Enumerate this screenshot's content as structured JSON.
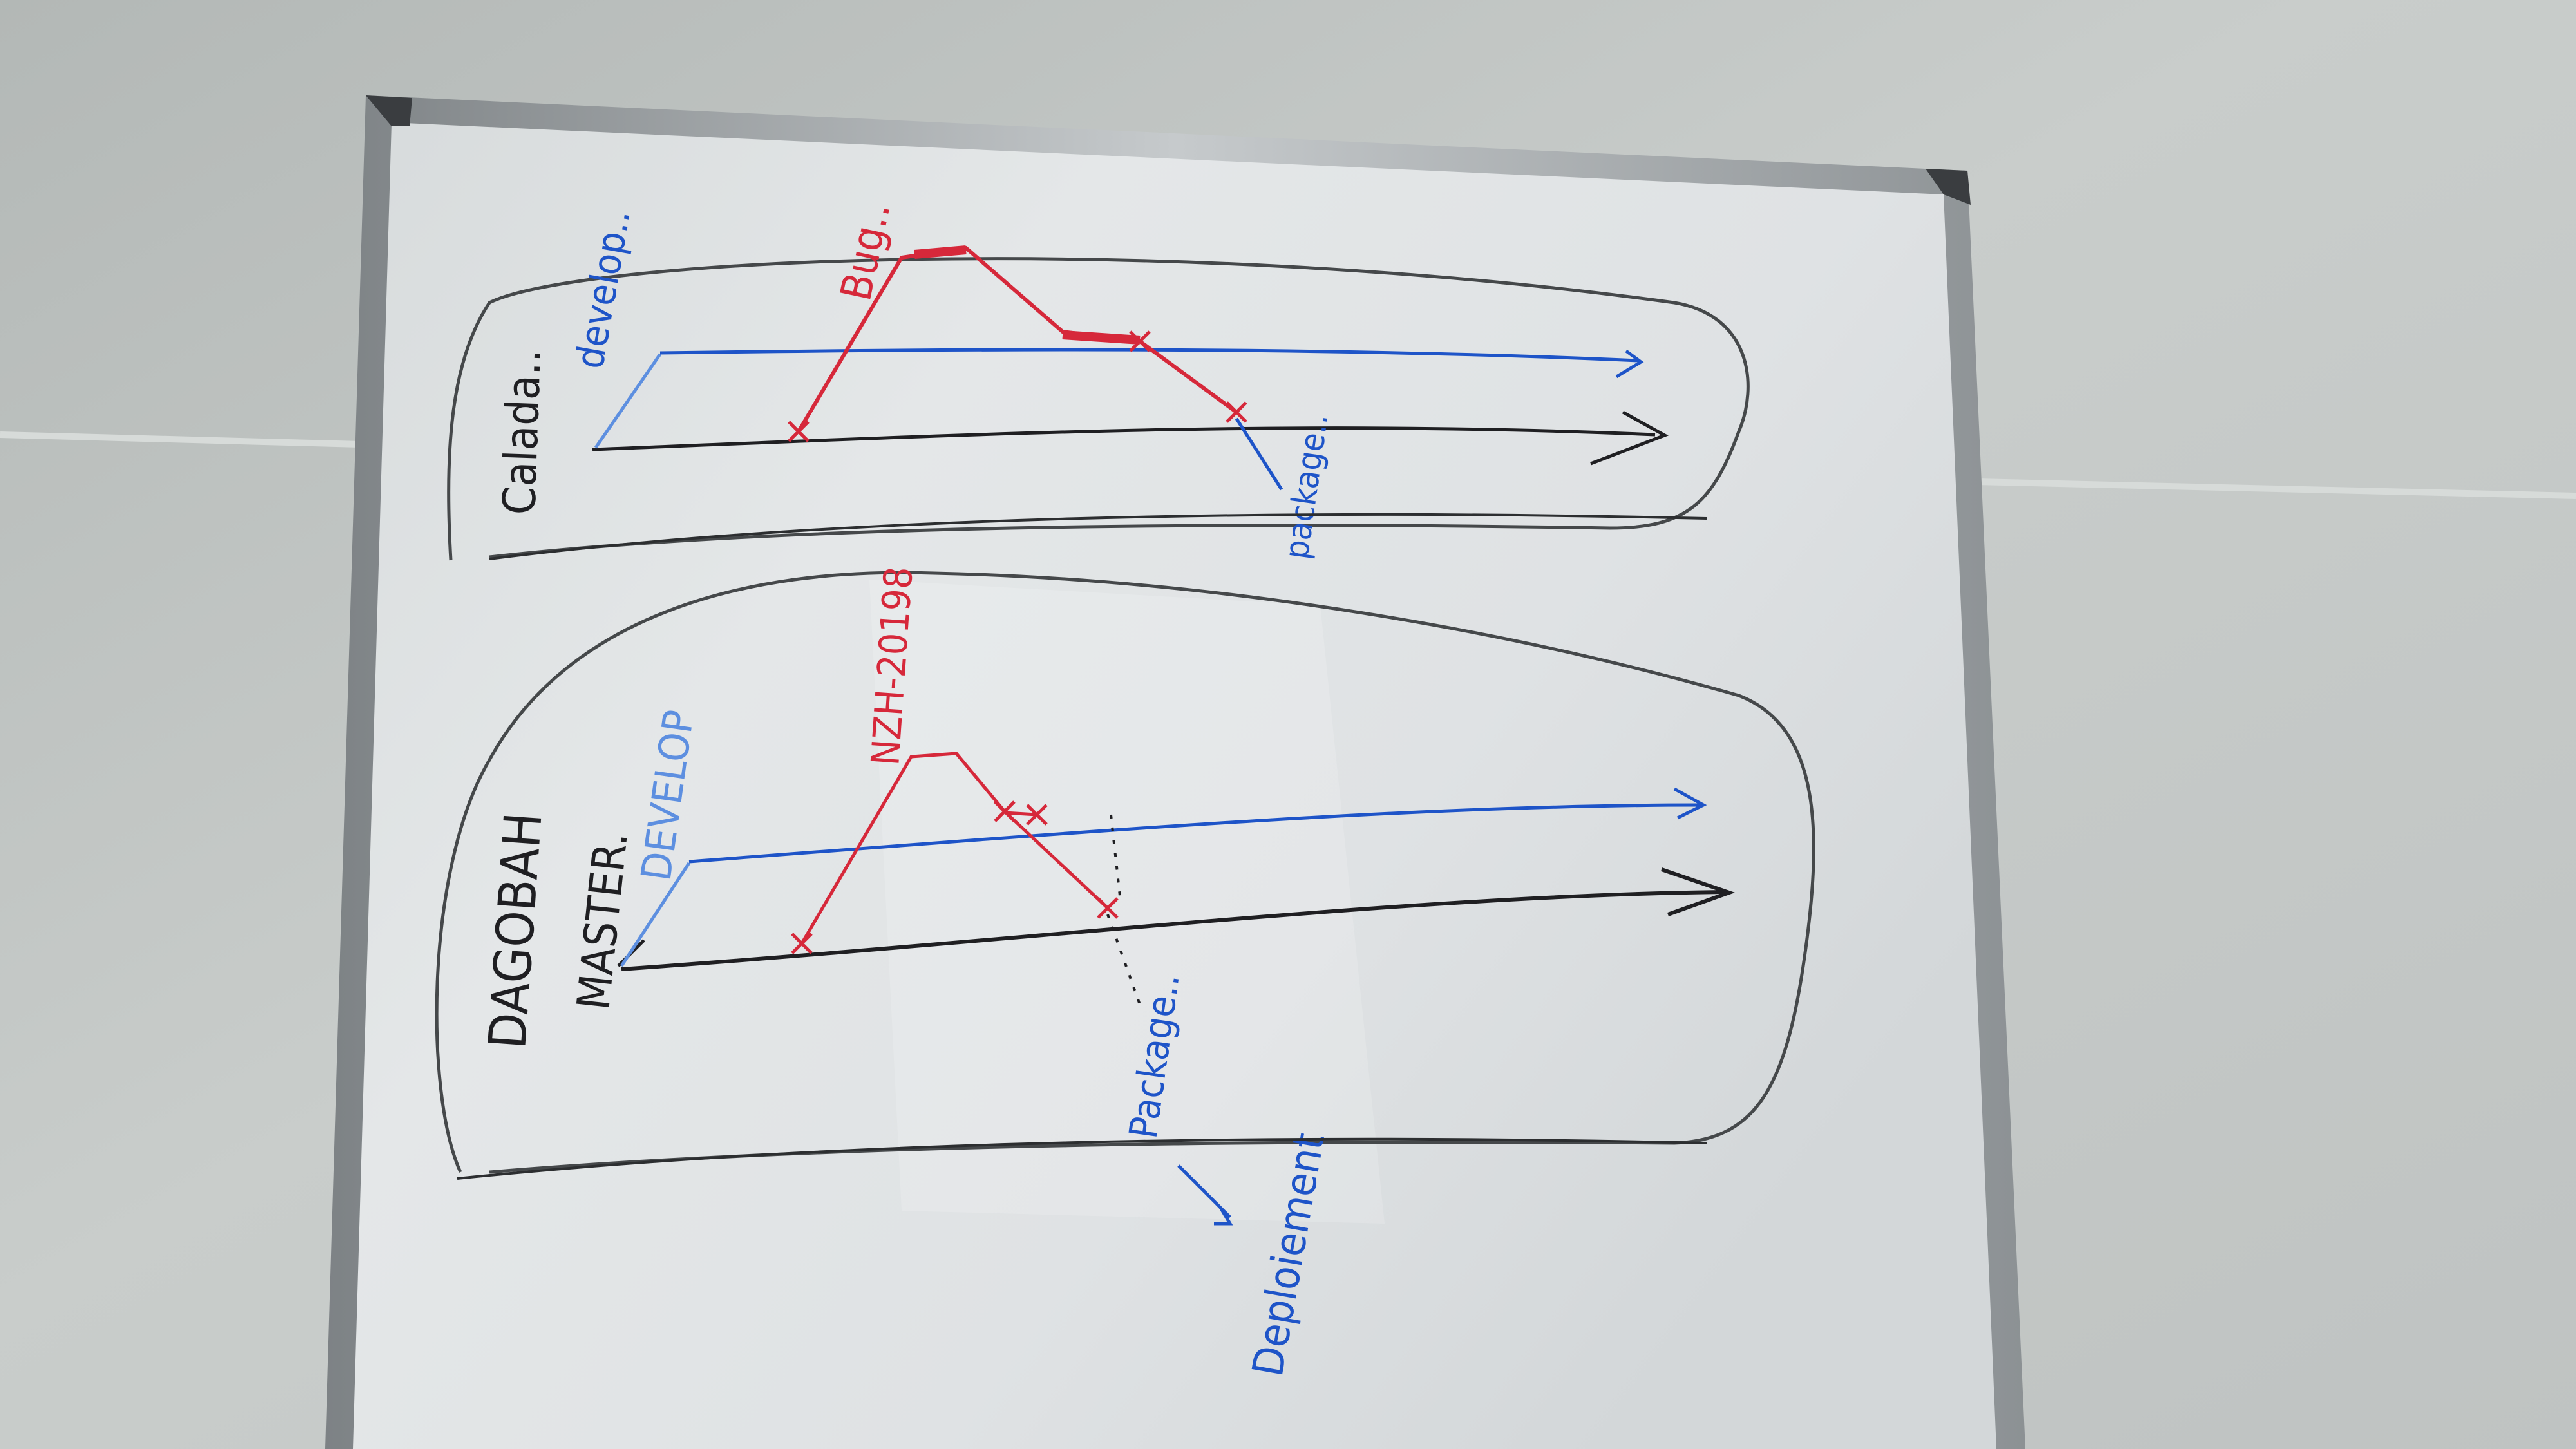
{
  "whiteboard": {
    "top_section": {
      "title": "Calada..",
      "branch_blue_label": "develop..",
      "branch_red_label": "Bug..",
      "bottom_label": "package.."
    },
    "bottom_section": {
      "title": "DAGOBAH",
      "branch_black_label": "MASTER.",
      "branch_blue_label": "DEVELOP",
      "branch_red_label": "NZH-20198",
      "package_label": "Package..",
      "deploy_label": "Deploiement"
    }
  },
  "colors": {
    "wall": "#b9bdbd",
    "board": "#dfe3e4",
    "frame": "#9aa0a3",
    "ink_black": "#1f1f22",
    "ink_blue": "#1e54c8",
    "ink_red": "#d6283a",
    "ink_blue_light": "#5d8fe0"
  }
}
